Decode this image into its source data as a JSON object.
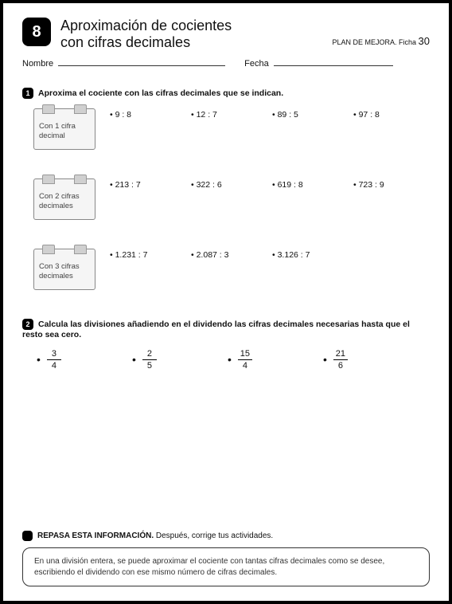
{
  "lesson_number": "8",
  "title_line1": "Aproximación de cocientes",
  "title_line2": "con cifras decimales",
  "plan_label": "PLAN DE MEJORA. Ficha ",
  "plan_number": "30",
  "nombre_label": "Nombre",
  "fecha_label": "Fecha",
  "ex1": {
    "badge": "1",
    "heading": "Aproxima el cociente con las cifras decimales que se indican.",
    "rows": [
      {
        "card": "Con 1 cifra decimal",
        "problems": [
          "9 : 8",
          "12 : 7",
          "89 : 5",
          "97 : 8"
        ]
      },
      {
        "card": "Con 2 cifras decimales",
        "problems": [
          "213 : 7",
          "322 : 6",
          "619 : 8",
          "723 : 9"
        ]
      },
      {
        "card": "Con 3 cifras decimales",
        "problems": [
          "1.231 : 7",
          "2.087 : 3",
          "3.126 : 7"
        ]
      }
    ]
  },
  "ex2": {
    "badge": "2",
    "heading": "Calcula las divisiones añadiendo en el dividendo las cifras decimales necesarias hasta que el resto sea cero.",
    "fractions": [
      {
        "num": "3",
        "den": "4"
      },
      {
        "num": "2",
        "den": "5"
      },
      {
        "num": "15",
        "den": "4"
      },
      {
        "num": "21",
        "den": "6"
      }
    ]
  },
  "review": {
    "heading_bold": "REPASA ESTA INFORMACIÓN.",
    "heading_rest": " Después, corrige tus actividades.",
    "box": "En una división entera, se puede aproximar el cociente con tantas cifras decimales como se desee, escribiendo el dividendo con ese mismo número de cifras decimales."
  }
}
